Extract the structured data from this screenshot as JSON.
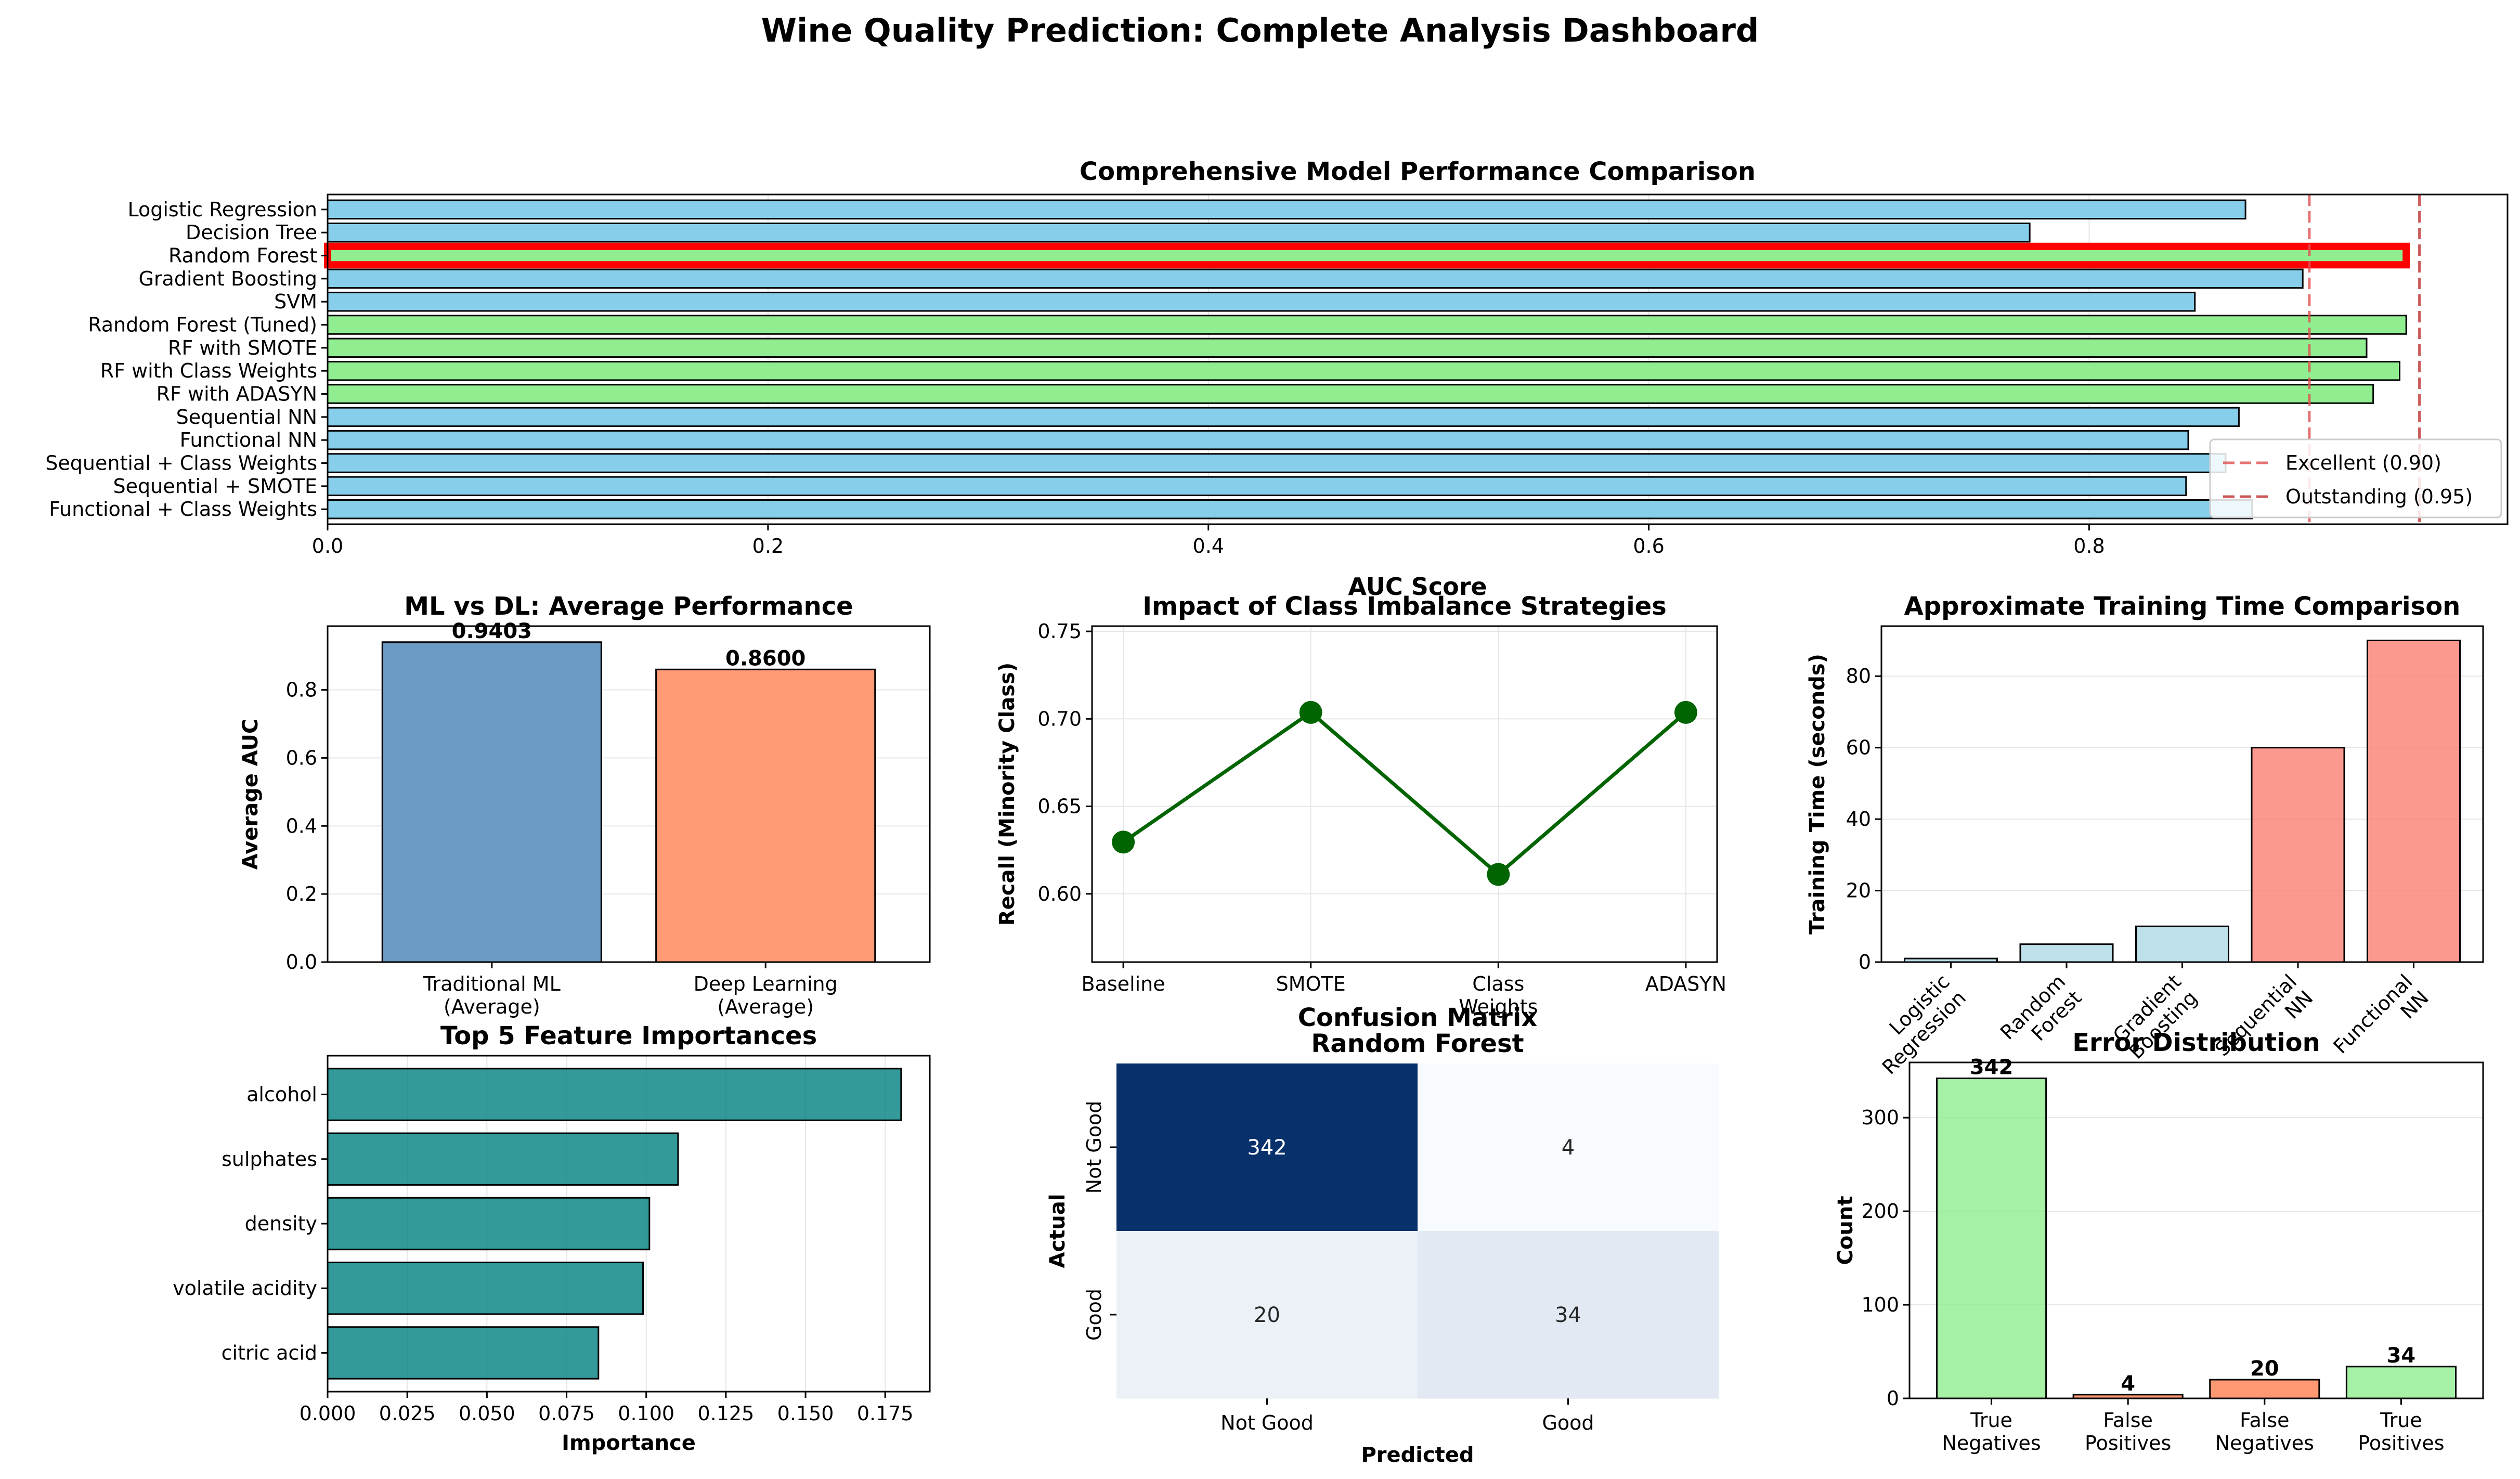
{
  "figure": {
    "title": "Wine Quality Prediction: Complete Analysis Dashboard"
  },
  "chart_data": [
    {
      "id": "model-comparison",
      "type": "bar",
      "orientation": "horizontal",
      "title": "Comprehensive Model Performance Comparison",
      "xlabel": "AUC Score",
      "xlim": [
        0,
        0.99
      ],
      "xticks": [
        0.0,
        0.2,
        0.4,
        0.6,
        0.8
      ],
      "grid": true,
      "categories": [
        "Logistic Regression",
        "Decision Tree",
        "Random Forest",
        "Gradient Boosting",
        "SVM",
        "Random Forest (Tuned)",
        "RF with SMOTE",
        "RF with Class Weights",
        "RF with ADASYN",
        "Sequential NN",
        "Functional NN",
        "Sequential + Class Weights",
        "Sequential + SMOTE",
        "Functional + Class Weights"
      ],
      "values": [
        0.871,
        0.773,
        0.944,
        0.897,
        0.848,
        0.944,
        0.926,
        0.941,
        0.929,
        0.868,
        0.845,
        0.862,
        0.844,
        0.874
      ],
      "bar_colors": [
        "#87ceeb",
        "#87ceeb",
        "#90ee90",
        "#87ceeb",
        "#87ceeb",
        "#90ee90",
        "#90ee90",
        "#90ee90",
        "#90ee90",
        "#87ceeb",
        "#87ceeb",
        "#87ceeb",
        "#87ceeb",
        "#87ceeb"
      ],
      "highlight": {
        "category": "Random Forest",
        "color": "#ff0000"
      },
      "reference_lines": [
        {
          "label": "Excellent (0.90)",
          "value": 0.9,
          "color": "#e05050"
        },
        {
          "label": "Outstanding (0.95)",
          "value": 0.95,
          "color": "#c03030"
        }
      ],
      "legend": "lower-right"
    },
    {
      "id": "ml-vs-dl",
      "type": "bar",
      "title": "ML vs DL: Average Performance",
      "ylabel": "Average AUC",
      "categories": [
        [
          "Traditional ML",
          "(Average)"
        ],
        [
          "Deep Learning",
          "(Average)"
        ]
      ],
      "values": [
        0.9403,
        0.86
      ],
      "value_labels": [
        "0.9403",
        "0.8600"
      ],
      "bar_colors": [
        "#6b9ac4",
        "#ff9a74"
      ],
      "ylim": [
        0,
        0.9873
      ],
      "yticks": [
        0.0,
        0.2,
        0.4,
        0.6,
        0.8
      ],
      "grid": true
    },
    {
      "id": "imbalance-strategies",
      "type": "line",
      "title": "Impact of Class Imbalance Strategies",
      "ylabel": "Recall (Minority Class)",
      "categories": [
        [
          "Baseline"
        ],
        [
          "SMOTE"
        ],
        [
          "Class",
          "Weights"
        ],
        [
          "ADASYN"
        ]
      ],
      "values": [
        0.6296,
        0.7037,
        0.6111,
        0.7037
      ],
      "ylim": [
        0.561,
        0.753
      ],
      "yticks": [
        0.6,
        0.65,
        0.7,
        0.75
      ],
      "line_color": "#006400",
      "grid": true
    },
    {
      "id": "training-time",
      "type": "bar",
      "title": "Approximate Training Time Comparison",
      "ylabel": "Training Time (seconds)",
      "categories": [
        [
          "Logistic",
          "Regression"
        ],
        [
          "Random",
          "Forest"
        ],
        [
          "Gradient",
          "Boosting"
        ],
        [
          "Sequential",
          "NN"
        ],
        [
          "Functional",
          "NN"
        ]
      ],
      "values": [
        1,
        5,
        10,
        60,
        90
      ],
      "bar_colors": [
        "#add8e6",
        "#add8e6",
        "#add8e6",
        "#fa8072",
        "#fa8072"
      ],
      "ylim": [
        0,
        94
      ],
      "yticks": [
        0,
        20,
        40,
        60,
        80
      ],
      "grid": true
    },
    {
      "id": "feature-importance",
      "type": "bar",
      "orientation": "horizontal",
      "title": "Top 5 Feature Importances",
      "xlabel": "Importance",
      "categories": [
        "alcohol",
        "sulphates",
        "density",
        "volatile acidity",
        "citric acid"
      ],
      "values": [
        0.18,
        0.11,
        0.101,
        0.099,
        0.085
      ],
      "xlim": [
        0,
        0.189
      ],
      "xticks": [
        "0.000",
        "0.025",
        "0.050",
        "0.075",
        "0.100",
        "0.125",
        "0.150",
        "0.175"
      ],
      "bar_color": "#008080",
      "grid": true
    },
    {
      "id": "confusion-matrix",
      "type": "heatmap",
      "title": [
        "Confusion Matrix",
        "Random Forest"
      ],
      "xlabel": "Predicted",
      "ylabel": "Actual",
      "x_categories": [
        "Not Good",
        "Good"
      ],
      "y_categories": [
        "Not Good",
        "Good"
      ],
      "values": [
        [
          342,
          4
        ],
        [
          20,
          34
        ]
      ],
      "colormap": "Blues"
    },
    {
      "id": "error-distribution",
      "type": "bar",
      "title": "Error Distribution",
      "ylabel": "Count",
      "categories": [
        [
          "True",
          "Negatives"
        ],
        [
          "False",
          "Positives"
        ],
        [
          "False",
          "Negatives"
        ],
        [
          "True",
          "Positives"
        ]
      ],
      "values": [
        342,
        4,
        20,
        34
      ],
      "value_labels": [
        "342",
        "4",
        "20",
        "34"
      ],
      "bar_colors": [
        "#90ee90",
        "#ff7f50",
        "#ff7f50",
        "#90ee90"
      ],
      "ylim": [
        0,
        359
      ],
      "yticks": [
        0,
        100,
        200,
        300
      ],
      "grid": true
    }
  ]
}
